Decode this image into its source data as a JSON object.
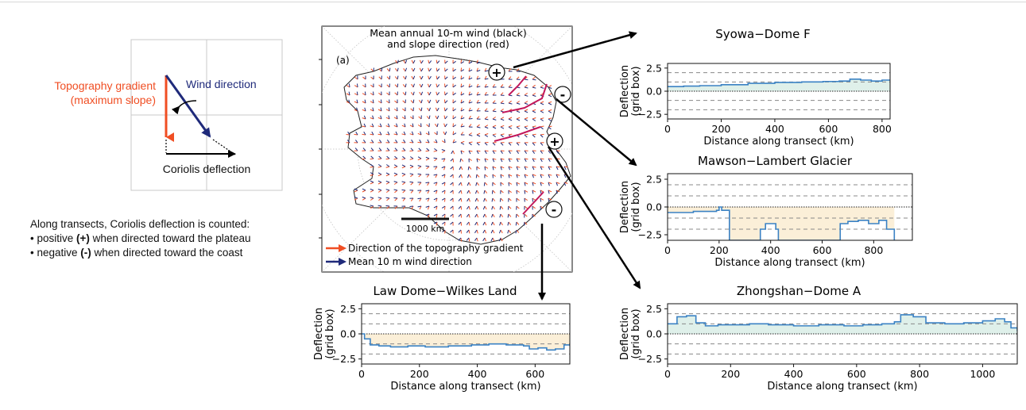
{
  "schematic": {
    "topo_label_1": "Topography gradient",
    "topo_label_2": "(maximum slope)",
    "wind_label": "Wind direction",
    "coriolis_label": "Coriolis deflection",
    "colors": {
      "topo": "#f04e23",
      "wind": "#1f2a7a",
      "coriolis": "#000000"
    }
  },
  "explanation": {
    "intro": "Along transects, Coriolis deflection is counted:",
    "bullet1_pre": "positive ",
    "bullet1_bold": "(+)",
    "bullet1_post": " when directed toward the plateau",
    "bullet2_pre": "negative ",
    "bullet2_bold": "(-)",
    "bullet2_post": " when directed toward the coast"
  },
  "map": {
    "title_1": "Mean annual 10-m wind (black)",
    "title_2": "and slope direction (red)",
    "panel_label": "(a)",
    "scale_label": "1000 km",
    "legend_topo": "Direction of the topography gradient",
    "legend_wind": "Mean 10 m wind direction",
    "signs": [
      "+",
      "-",
      "+",
      "-"
    ],
    "colors": {
      "topo": "#f04e23",
      "wind": "#1f2a7a",
      "transect": "#c2185b"
    }
  },
  "chart_data": [
    {
      "type": "line",
      "title": "Syowa−Dome F",
      "xlabel": "Distance along transect (km)",
      "ylabel_1": "Deflection",
      "ylabel_2": "(grid box)",
      "xlim": [
        0,
        830
      ],
      "ylim": [
        -3,
        3
      ],
      "xticks": [
        0,
        200,
        400,
        600,
        800
      ],
      "yticks": [
        -2.5,
        0.0,
        2.5
      ],
      "dashed_y": [
        -2,
        -1,
        1,
        2
      ],
      "fill": "pos",
      "line_color": "#3b82c4",
      "x": [
        0,
        60,
        120,
        200,
        300,
        400,
        500,
        580,
        640,
        680,
        720,
        760,
        800,
        830
      ],
      "y": [
        0.5,
        0.55,
        0.6,
        0.7,
        0.85,
        0.95,
        1.0,
        1.05,
        1.1,
        1.3,
        1.2,
        1.1,
        1.2,
        1.15
      ]
    },
    {
      "type": "line",
      "title": "Mawson−Lambert Glacier",
      "xlabel": "Distance along transect (km)",
      "ylabel_1": "Deflection",
      "ylabel_2": "(grid box)",
      "xlim": [
        0,
        950
      ],
      "ylim": [
        -3,
        3
      ],
      "xticks": [
        0,
        200,
        400,
        600,
        800
      ],
      "yticks": [
        -2.5,
        0.0,
        2.5
      ],
      "dashed_y": [
        -2,
        -1,
        1,
        2
      ],
      "fill": "neg",
      "line_color": "#3b82c4",
      "x": [
        0,
        100,
        190,
        200,
        210,
        240,
        360,
        380,
        420,
        430,
        640,
        670,
        700,
        740,
        780,
        820,
        850,
        880
      ],
      "y": [
        -0.5,
        -0.4,
        -0.3,
        0.0,
        -0.3,
        -3.0,
        -2.0,
        -1.5,
        -2.0,
        -3.0,
        -3.0,
        -1.5,
        -1.3,
        -1.2,
        -1.5,
        -1.2,
        -2.0,
        -3.0
      ]
    },
    {
      "type": "line",
      "title": "Law Dome−Wilkes Land",
      "xlabel": "Distance along transect (km)",
      "ylabel_1": "Deflection",
      "ylabel_2": "(grid box)",
      "xlim": [
        0,
        720
      ],
      "ylim": [
        -3,
        3
      ],
      "xticks": [
        0,
        200,
        400,
        600
      ],
      "yticks": [
        -2.5,
        0.0,
        2.5
      ],
      "dashed_y": [
        -2,
        -1,
        1,
        2
      ],
      "fill": "neg",
      "line_color": "#3b82c4",
      "x": [
        0,
        10,
        30,
        60,
        100,
        160,
        220,
        300,
        380,
        440,
        500,
        560,
        580,
        610,
        640,
        670,
        700,
        720
      ],
      "y": [
        0.0,
        -0.5,
        -1.1,
        -1.2,
        -1.3,
        -1.2,
        -1.3,
        -1.2,
        -1.1,
        -1.0,
        -1.1,
        -1.2,
        -1.5,
        -1.4,
        -1.6,
        -1.5,
        -1.1,
        -1.2
      ]
    },
    {
      "type": "line",
      "title": "Zhongshan−Dome A",
      "xlabel": "Distance along transect (km)",
      "ylabel_1": "Deflection",
      "ylabel_2": "(grid box)",
      "xlim": [
        0,
        1110
      ],
      "ylim": [
        -3,
        3
      ],
      "xticks": [
        0,
        200,
        400,
        600,
        800,
        1000
      ],
      "yticks": [
        -2.5,
        0.0,
        2.5
      ],
      "dashed_y": [
        -2,
        -1,
        1,
        2
      ],
      "fill": "pos",
      "line_color": "#3b82c4",
      "x": [
        0,
        30,
        60,
        90,
        120,
        160,
        200,
        260,
        320,
        400,
        480,
        560,
        620,
        680,
        720,
        740,
        780,
        820,
        880,
        940,
        1000,
        1040,
        1070,
        1090,
        1110
      ],
      "y": [
        1.0,
        1.7,
        1.8,
        1.1,
        0.8,
        0.9,
        0.9,
        1.0,
        0.9,
        0.8,
        0.9,
        0.8,
        0.9,
        1.0,
        1.2,
        1.9,
        1.7,
        1.1,
        1.0,
        1.1,
        1.3,
        1.5,
        1.2,
        0.6,
        0.3
      ]
    }
  ]
}
